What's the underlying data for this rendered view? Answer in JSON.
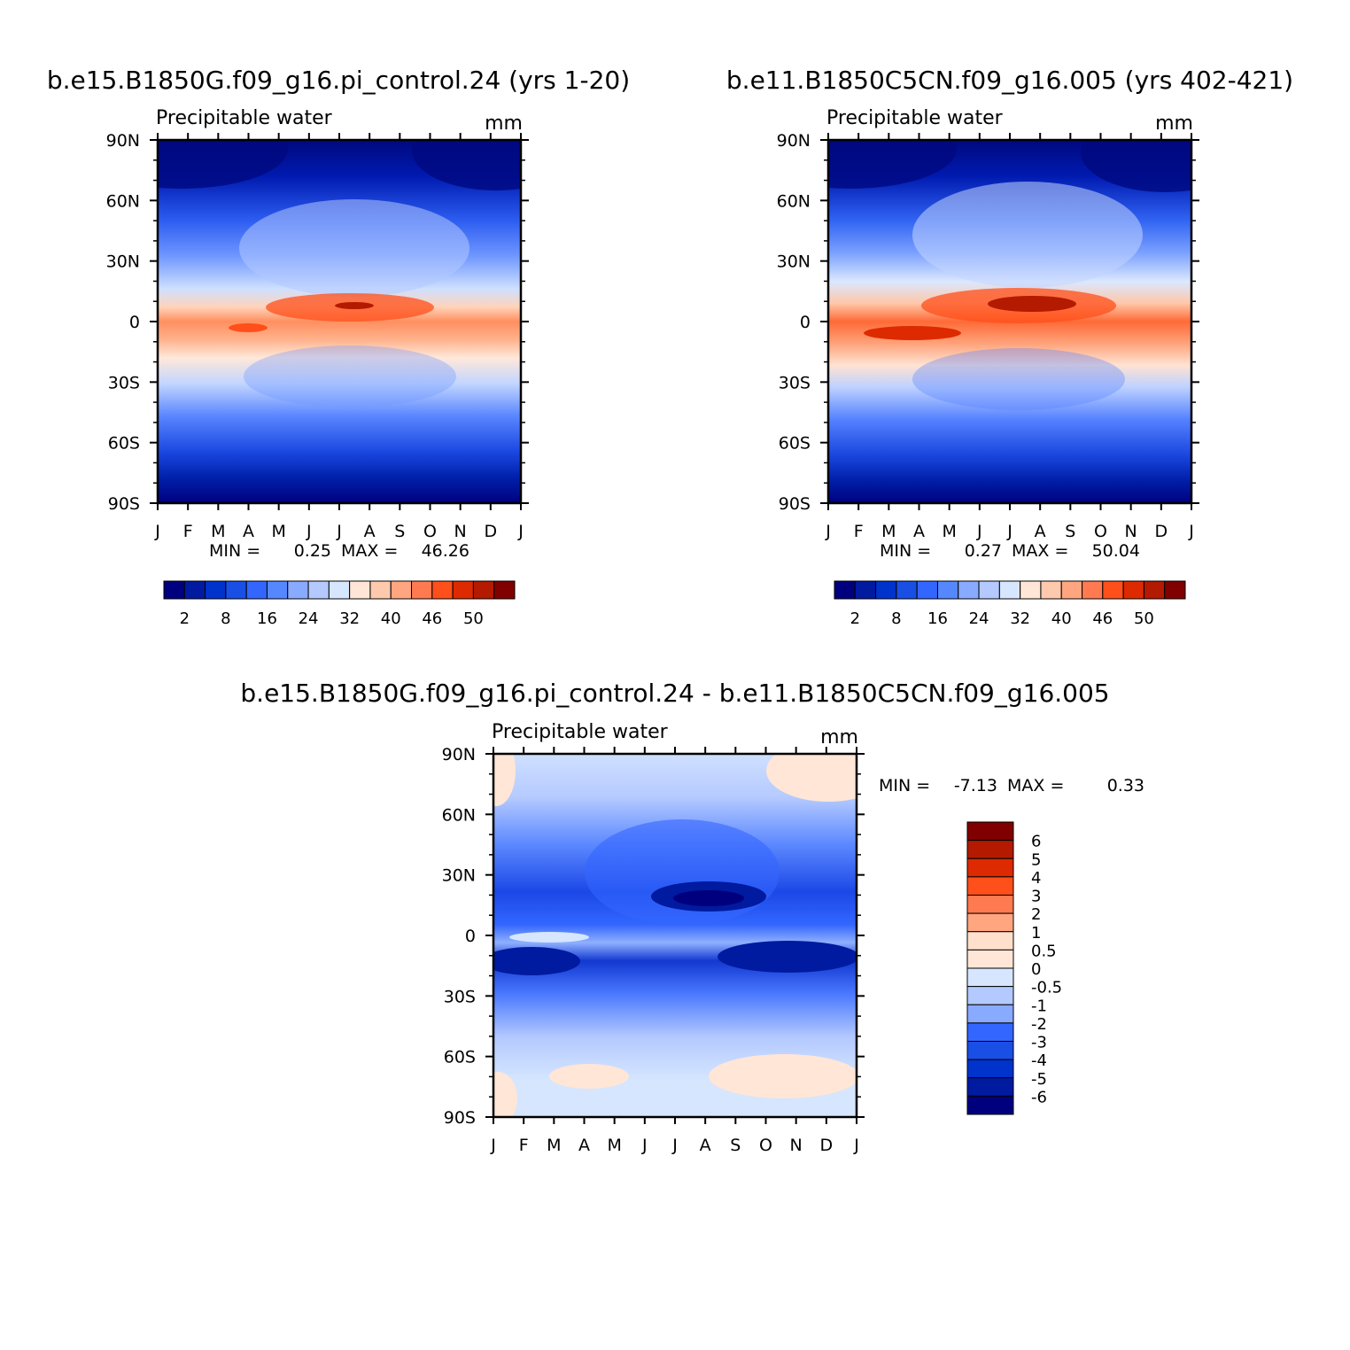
{
  "chart_data": [
    {
      "type": "heatmap",
      "title": "b.e15.B1850G.f09_g16.pi_control.24 (yrs 1-20)",
      "variable": "Precipitable water",
      "units": "mm",
      "x": [
        "J",
        "F",
        "M",
        "A",
        "M",
        "J",
        "J",
        "A",
        "S",
        "O",
        "N",
        "D",
        "J"
      ],
      "y": [
        "90N",
        "60N",
        "30N",
        "0",
        "30S",
        "60S",
        "90S"
      ],
      "xlim": [
        0,
        12
      ],
      "ylim": [
        -90,
        90
      ],
      "min_label": "MIN =",
      "min_value": "0.25",
      "max_label": "MAX =",
      "max_value": "46.26",
      "colorbar": {
        "orientation": "horizontal",
        "colors": [
          "#00007f",
          "#001aa0",
          "#0033cc",
          "#1a4fe6",
          "#3366ff",
          "#5588ff",
          "#88aaff",
          "#b3c9ff",
          "#d6e6ff",
          "#ffe6d6",
          "#ffc9ad",
          "#ffa680",
          "#ff7a50",
          "#ff4f1a",
          "#dd2a00",
          "#b31a00",
          "#800000"
        ],
        "tick_labels": [
          "2",
          "8",
          "16",
          "24",
          "32",
          "40",
          "46",
          "50"
        ]
      }
    },
    {
      "type": "heatmap",
      "title": "b.e11.B1850C5CN.f09_g16.005 (yrs 402-421)",
      "variable": "Precipitable water",
      "units": "mm",
      "x": [
        "J",
        "F",
        "M",
        "A",
        "M",
        "J",
        "J",
        "A",
        "S",
        "O",
        "N",
        "D",
        "J"
      ],
      "y": [
        "90N",
        "60N",
        "30N",
        "0",
        "30S",
        "60S",
        "90S"
      ],
      "xlim": [
        0,
        12
      ],
      "ylim": [
        -90,
        90
      ],
      "min_label": "MIN =",
      "min_value": "0.27",
      "max_label": "MAX =",
      "max_value": "50.04",
      "colorbar": {
        "orientation": "horizontal",
        "colors": [
          "#00007f",
          "#001aa0",
          "#0033cc",
          "#1a4fe6",
          "#3366ff",
          "#5588ff",
          "#88aaff",
          "#b3c9ff",
          "#d6e6ff",
          "#ffe6d6",
          "#ffc9ad",
          "#ffa680",
          "#ff7a50",
          "#ff4f1a",
          "#dd2a00",
          "#b31a00",
          "#800000"
        ],
        "tick_labels": [
          "2",
          "8",
          "16",
          "24",
          "32",
          "40",
          "46",
          "50"
        ]
      }
    },
    {
      "type": "heatmap",
      "title": "b.e15.B1850G.f09_g16.pi_control.24 - b.e11.B1850C5CN.f09_g16.005",
      "variable": "Precipitable water",
      "units": "mm",
      "x": [
        "J",
        "F",
        "M",
        "A",
        "M",
        "J",
        "J",
        "A",
        "S",
        "O",
        "N",
        "D",
        "J"
      ],
      "y": [
        "90N",
        "60N",
        "30N",
        "0",
        "30S",
        "60S",
        "90S"
      ],
      "xlim": [
        0,
        12
      ],
      "ylim": [
        -90,
        90
      ],
      "min_label": "MIN =",
      "min_value": "-7.13",
      "max_label": "MAX =",
      "max_value": "0.33",
      "colorbar": {
        "orientation": "vertical",
        "colors": [
          "#800000",
          "#b31a00",
          "#dd2a00",
          "#ff4f1a",
          "#ff7a50",
          "#ffa680",
          "#ffe0cc",
          "#ffe6d6",
          "#d6e6ff",
          "#b3c9ff",
          "#88aaff",
          "#3366ff",
          "#1a4fe6",
          "#0033cc",
          "#001aa0",
          "#00007f"
        ],
        "tick_labels": [
          "6",
          "5",
          "4",
          "3",
          "2",
          "1",
          "0.5",
          "0",
          "-0.5",
          "-1",
          "-2",
          "-3",
          "-4",
          "-5",
          "-6"
        ]
      }
    }
  ]
}
